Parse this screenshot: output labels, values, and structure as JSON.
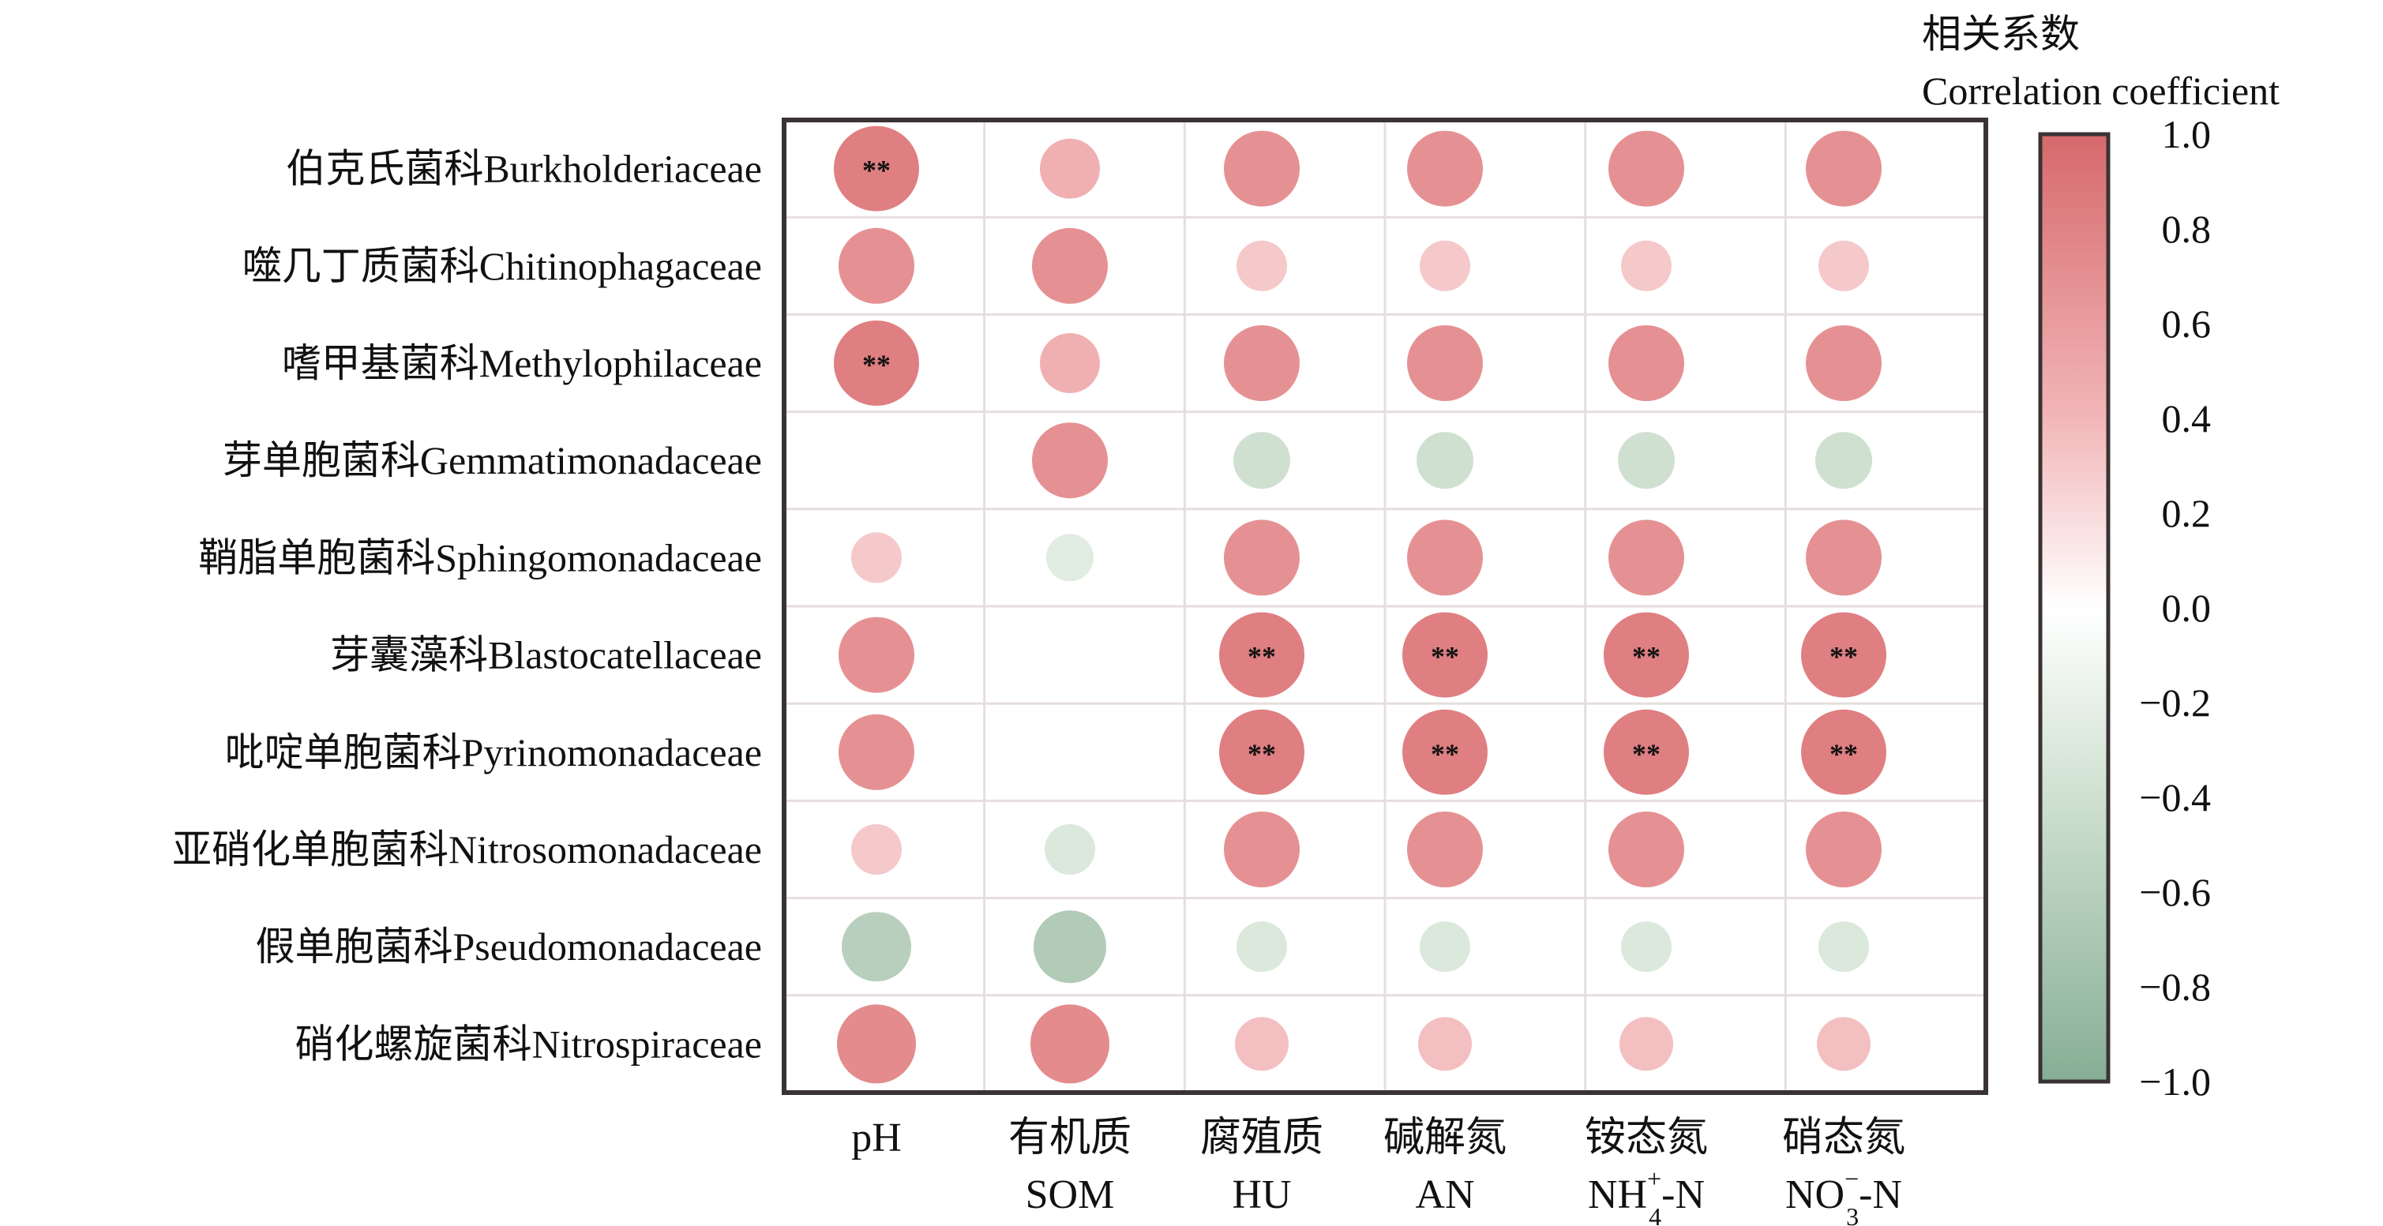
{
  "chart_data": {
    "type": "heatmap",
    "subtype": "correlation-dot-matrix",
    "rows": [
      "伯克氏菌科Burkholderiaceae",
      "噬几丁质菌科Chitinophagaceae",
      "嗜甲基菌科Methylophilaceae",
      "芽单胞菌科Gemmatimonadaceae",
      "鞘脂单胞菌科Sphingomonadaceae",
      "芽囊藻科Blastocatellaceae",
      "吡啶单胞菌科Pyrinomonadaceae",
      "亚硝化单胞菌科Nitrosomonadaceae",
      "假单胞菌科Pseudomonadaceae",
      "硝化螺旋菌科Nitrospiraceae"
    ],
    "columns": [
      {
        "cn": "pH",
        "en_base": "",
        "en_sup": "",
        "en_sub": "",
        "en_tail": ""
      },
      {
        "cn": "有机质",
        "en_base": "SOM",
        "en_sup": "",
        "en_sub": "",
        "en_tail": ""
      },
      {
        "cn": "腐殖质",
        "en_base": "HU",
        "en_sup": "",
        "en_sub": "",
        "en_tail": ""
      },
      {
        "cn": "碱解氮",
        "en_base": "AN",
        "en_sup": "",
        "en_sub": "",
        "en_tail": ""
      },
      {
        "cn": "铵态氮",
        "en_base": "NH",
        "en_sup": "+",
        "en_sub": "4",
        "en_tail": "-N"
      },
      {
        "cn": "硝态氮",
        "en_base": "NO",
        "en_sup": "−",
        "en_sub": "3",
        "en_tail": "-N"
      }
    ],
    "values": [
      [
        0.85,
        0.45,
        0.7,
        0.7,
        0.7,
        0.7
      ],
      [
        0.7,
        0.7,
        0.3,
        0.3,
        0.3,
        0.3
      ],
      [
        0.85,
        0.45,
        0.7,
        0.7,
        0.7,
        0.7
      ],
      [
        0.0,
        0.7,
        -0.4,
        -0.4,
        -0.4,
        -0.4
      ],
      [
        0.3,
        -0.25,
        0.7,
        0.7,
        0.7,
        0.7
      ],
      [
        0.7,
        0.0,
        0.85,
        0.85,
        0.85,
        0.85
      ],
      [
        0.7,
        0.0,
        0.85,
        0.85,
        0.85,
        0.85
      ],
      [
        0.3,
        -0.3,
        0.7,
        0.7,
        0.7,
        0.7
      ],
      [
        -0.6,
        -0.65,
        -0.3,
        -0.3,
        -0.3,
        -0.3
      ],
      [
        0.75,
        0.75,
        0.35,
        0.35,
        0.35,
        0.35
      ]
    ],
    "significance": [
      [
        "**",
        "",
        "",
        "",
        "",
        ""
      ],
      [
        "",
        "",
        "",
        "",
        "",
        ""
      ],
      [
        "**",
        "",
        "",
        "",
        "",
        ""
      ],
      [
        "",
        "",
        "",
        "",
        "",
        ""
      ],
      [
        "",
        "",
        "",
        "",
        "",
        ""
      ],
      [
        "",
        "",
        "**",
        "**",
        "**",
        "**"
      ],
      [
        "",
        "",
        "**",
        "**",
        "**",
        "**"
      ],
      [
        "",
        "",
        "",
        "",
        "",
        ""
      ],
      [
        "",
        "",
        "",
        "",
        "",
        ""
      ],
      [
        "",
        "",
        "",
        "",
        "",
        ""
      ]
    ],
    "legend": {
      "title_cn": "相关系数",
      "title_en": "Correlation coefficient",
      "placement": "right",
      "range": [
        -1.0,
        1.0
      ],
      "ticks": [
        "1.0",
        "0.8",
        "0.6",
        "0.4",
        "0.2",
        "0.0",
        "−0.2",
        "−0.4",
        "−0.6",
        "−0.8",
        "−1.0"
      ],
      "tick_values": [
        1.0,
        0.8,
        0.6,
        0.4,
        0.2,
        0.0,
        -0.2,
        -0.4,
        -0.6,
        -0.8,
        -1.0
      ]
    },
    "colors": {
      "positive": "#d86c6e",
      "positive_mid": "#f2b6b8",
      "zero": "#ffffff",
      "negative_mid": "#cfe0d0",
      "negative": "#86ae94",
      "frame": "#3a3333",
      "grid": "#e6dede",
      "asterisk": "#3a2626"
    }
  }
}
